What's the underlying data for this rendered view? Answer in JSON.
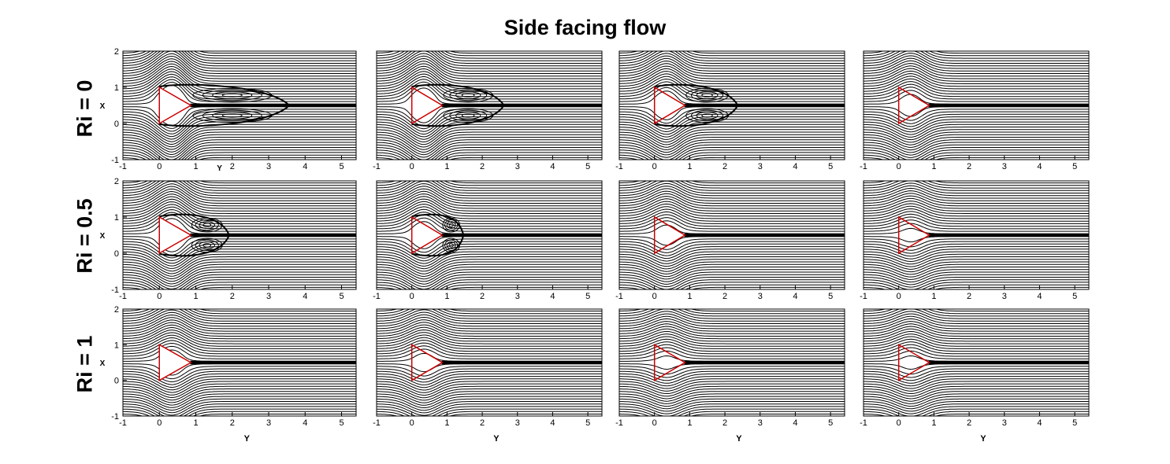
{
  "figure": {
    "title": "Side facing flow"
  },
  "colors": {
    "streamline": "#000000",
    "body_outline": "#cc0000",
    "background": "#ffffff"
  },
  "axes": {
    "x_ticks": [
      "-1",
      "0",
      "1",
      "2",
      "3",
      "4",
      "5"
    ],
    "y_ticks": [
      "-1",
      "0",
      "1",
      "2"
    ],
    "xlabel": "Y",
    "ylabel": "X",
    "xlim": [
      -1,
      5.4
    ],
    "ylim": [
      -1,
      2
    ]
  },
  "rows": [
    {
      "label": "Ri = 0"
    },
    {
      "label": "Ri = 0.5"
    },
    {
      "label": "Ri = 1"
    }
  ],
  "body": {
    "shape": "triangle",
    "vertices": [
      [
        0,
        0
      ],
      [
        0,
        1
      ],
      [
        0.866,
        0.5
      ]
    ]
  }
}
